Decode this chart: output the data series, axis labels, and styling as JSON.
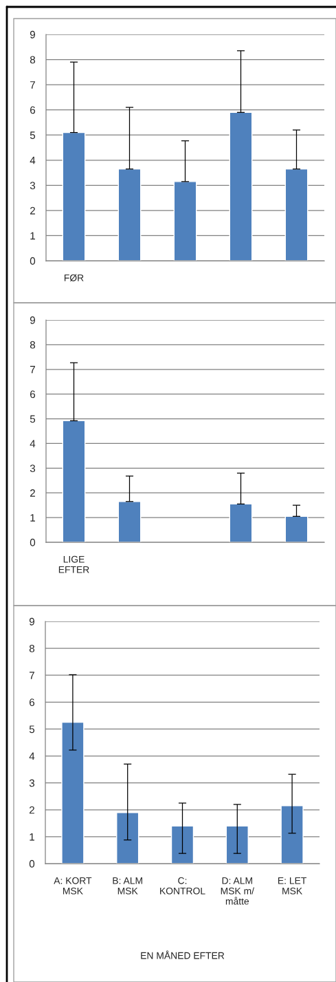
{
  "chart_data": [
    {
      "type": "bar",
      "categories": [
        "FØR",
        null,
        null,
        null,
        null
      ],
      "values": [
        5.1,
        3.65,
        3.15,
        5.9,
        3.65
      ],
      "errors": [
        [
          5.1,
          7.9
        ],
        [
          3.65,
          6.1
        ],
        [
          3.15,
          4.77
        ],
        [
          5.9,
          8.35
        ],
        [
          3.65,
          5.2
        ]
      ],
      "color": "#4f81bd",
      "ylim": [
        0,
        9
      ],
      "yticks": [
        0,
        1,
        2,
        3,
        4,
        5,
        6,
        7,
        8,
        9
      ],
      "grid": "y"
    },
    {
      "type": "bar",
      "categories": [
        "LIGE\nEFTER",
        null,
        null,
        null,
        null
      ],
      "values": [
        4.92,
        1.65,
        null,
        1.55,
        1.05
      ],
      "errors": [
        [
          4.92,
          7.27
        ],
        [
          1.65,
          2.68
        ],
        null,
        [
          1.55,
          2.8
        ],
        [
          1.05,
          1.5
        ]
      ],
      "color": "#4f81bd",
      "ylim": [
        0,
        9
      ],
      "yticks": [
        0,
        1,
        2,
        3,
        4,
        5,
        6,
        7,
        8,
        9
      ],
      "grid": "y"
    },
    {
      "type": "bar",
      "categories": [
        "A: KORT\nMSK",
        "B: ALM\nMSK",
        "C:\nKONTROL",
        "D: ALM\nMSK m/\nmåtte",
        "E: LET\nMSK"
      ],
      "xlabel": "EN MÅNED EFTER",
      "values": [
        5.25,
        1.9,
        1.4,
        1.4,
        2.15
      ],
      "errors": [
        [
          4.22,
          7.02
        ],
        [
          0.88,
          3.7
        ],
        [
          0.38,
          2.25
        ],
        [
          0.38,
          2.2
        ],
        [
          1.13,
          3.32
        ]
      ],
      "color": "#4f81bd",
      "ylim": [
        0,
        9
      ],
      "yticks": [
        0,
        1,
        2,
        3,
        4,
        5,
        6,
        7,
        8,
        9
      ],
      "grid": "y"
    }
  ]
}
